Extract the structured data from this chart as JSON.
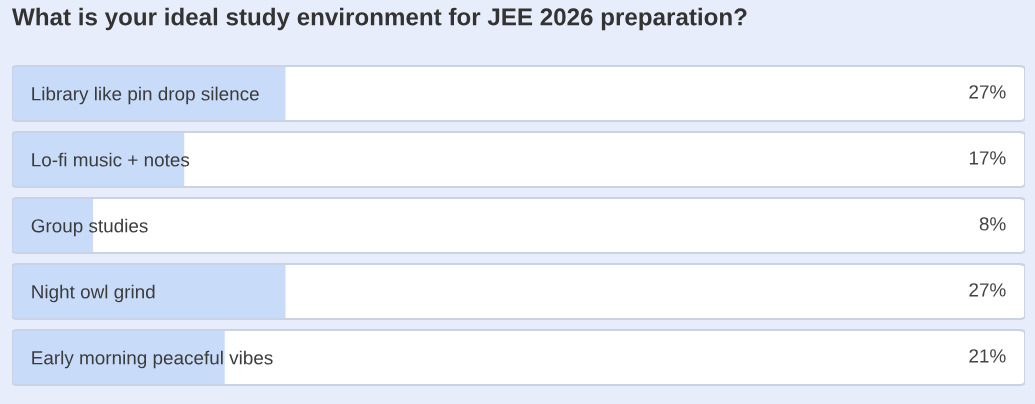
{
  "chart_data": {
    "type": "bar",
    "orientation": "horizontal",
    "title": "What is your ideal study environment for JEE 2026 preparation?",
    "categories": [
      "Library like pin drop silence",
      "Lo-fi music + notes",
      "Group studies",
      "Night owl grind",
      "Early morning peaceful vibes"
    ],
    "values": [
      27,
      17,
      8,
      27,
      21
    ],
    "value_labels": [
      "27%",
      "17%",
      "8%",
      "27%",
      "21%"
    ],
    "color": "#c8dcfa",
    "xlim": [
      0,
      100
    ],
    "tick_labels": "y"
  }
}
